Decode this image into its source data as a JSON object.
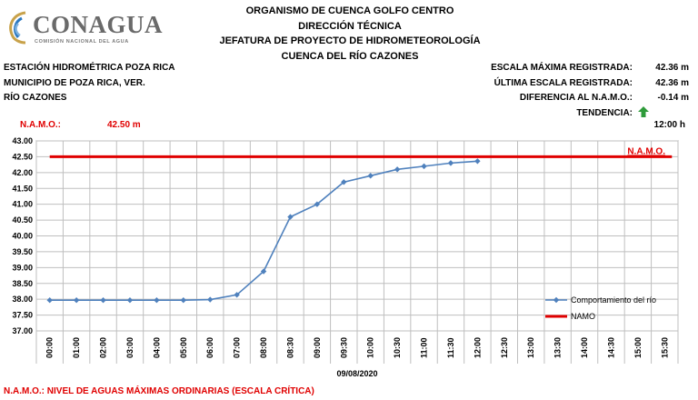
{
  "logo": {
    "name": "CONAGUA",
    "subtitle": "COMISIÓN NACIONAL DEL AGUA"
  },
  "header": {
    "line1": "ORGANISMO DE CUENCA GOLFO CENTRO",
    "line2": "DIRECCIÓN TÉCNICA",
    "line3": "JEFATURA DE PROYECTO DE HIDROMETEOROLOGÍA",
    "line4": "CUENCA DEL RÍO CAZONES"
  },
  "station": {
    "name": "ESTACIÓN HIDROMÉTRICA POZA RICA",
    "municipality": "MUNICIPIO DE POZA RICA, VER.",
    "river": "RÍO CAZONES"
  },
  "stats": {
    "max_label": "ESCALA MÁXIMA REGISTRADA:",
    "max_value": "42.36 m",
    "last_label": "ÚLTIMA ESCALA REGISTRADA:",
    "last_value": "42.36 m",
    "diff_label": "DIFERENCIA AL N.A.M.O.:",
    "diff_value": "-0.14 m",
    "trend_label": "TENDENCIA:",
    "trend_icon": "up-arrow-icon",
    "time": "12:00 h"
  },
  "namo": {
    "label": "N.A.M.O.:",
    "value": "42.50 m"
  },
  "footer": "N.A.M.O.: NIVEL DE AGUAS MÁXIMAS ORDINARIAS (ESCALA CRÍTICA)",
  "colors": {
    "series": "#4f81bd",
    "namo": "#e00000",
    "trend": "#2e9b3a",
    "grid": "#bfbfbf"
  },
  "chart_data": {
    "type": "line",
    "categories": [
      "00:00",
      "01:00",
      "02:00",
      "03:00",
      "04:00",
      "05:00",
      "06:00",
      "07:00",
      "08:00",
      "08:30",
      "09:00",
      "09:30",
      "10:00",
      "10:30",
      "11:00",
      "11:30",
      "12:00",
      "12:30",
      "13:00",
      "13:30",
      "14:00",
      "14:30",
      "15:00",
      "15:30"
    ],
    "series": [
      {
        "name": "Comportamiento del río",
        "values": [
          37.97,
          37.97,
          37.97,
          37.97,
          37.97,
          37.97,
          37.99,
          38.14,
          38.88,
          40.6,
          41.0,
          41.7,
          41.9,
          42.1,
          42.2,
          42.3,
          42.36,
          null,
          null,
          null,
          null,
          null,
          null,
          null
        ]
      },
      {
        "name": "NAMO",
        "values": [
          42.5,
          42.5,
          42.5,
          42.5,
          42.5,
          42.5,
          42.5,
          42.5,
          42.5,
          42.5,
          42.5,
          42.5,
          42.5,
          42.5,
          42.5,
          42.5,
          42.5,
          42.5,
          42.5,
          42.5,
          42.5,
          42.5,
          42.5,
          42.5
        ]
      }
    ],
    "namo_tag": "N.A.M.O.",
    "xlabel": "09/08/2020",
    "ylim": [
      37.0,
      43.0
    ],
    "yticks": [
      "37.00",
      "37.50",
      "38.00",
      "38.50",
      "39.00",
      "39.50",
      "40.00",
      "40.50",
      "41.00",
      "41.50",
      "42.00",
      "42.50",
      "43.00"
    ],
    "grid": true,
    "legend": "right"
  }
}
